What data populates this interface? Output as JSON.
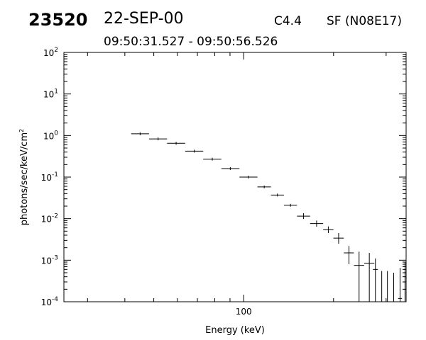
{
  "header": {
    "flare_number": "23520",
    "date": "22-SEP-00",
    "goes_class": "C4.4",
    "location": "SF (N08E17)",
    "time_range": "09:50:31.527 - 09:50:56.526"
  },
  "chart_data": {
    "type": "scatter",
    "title": "",
    "xlabel": "Energy (keV)",
    "ylabel": "photons/sec/keV/cm",
    "ylabel_superscript": "2",
    "xscale": "log",
    "yscale": "log",
    "xlim": [
      25,
      350
    ],
    "ylim": [
      0.0001,
      100
    ],
    "grid": false,
    "x_ticks": [
      {
        "value": 100,
        "label": "100"
      }
    ],
    "y_ticks": [
      {
        "value": 0.0001,
        "base": "10",
        "exp": "-4"
      },
      {
        "value": 0.001,
        "base": "10",
        "exp": "-3"
      },
      {
        "value": 0.01,
        "base": "10",
        "exp": "-2"
      },
      {
        "value": 0.1,
        "base": "10",
        "exp": "-1"
      },
      {
        "value": 1,
        "base": "10",
        "exp": "0"
      },
      {
        "value": 10,
        "base": "10",
        "exp": "1"
      },
      {
        "value": 100,
        "base": "10",
        "exp": "2"
      }
    ],
    "points": [
      {
        "x": 45.0,
        "xlo": 42.0,
        "xhi": 48.2,
        "y": 1.1
      },
      {
        "x": 51.7,
        "xlo": 48.2,
        "xhi": 55.4,
        "y": 0.83
      },
      {
        "x": 59.4,
        "xlo": 55.4,
        "xhi": 63.7,
        "y": 0.65
      },
      {
        "x": 68.3,
        "xlo": 63.7,
        "xhi": 73.2,
        "y": 0.42
      },
      {
        "x": 78.5,
        "xlo": 73.2,
        "xhi": 84.2,
        "y": 0.27
      },
      {
        "x": 90.2,
        "xlo": 84.2,
        "xhi": 96.8,
        "y": 0.16
      },
      {
        "x": 103.7,
        "xlo": 96.8,
        "xhi": 111.2,
        "y": 0.1
      },
      {
        "x": 117.2,
        "xlo": 111.2,
        "xhi": 123.4,
        "y": 0.058
      },
      {
        "x": 129.7,
        "xlo": 123.4,
        "xhi": 136.4,
        "y": 0.037
      },
      {
        "x": 143.5,
        "xlo": 136.4,
        "xhi": 150.9,
        "y": 0.021
      },
      {
        "x": 158.7,
        "xlo": 150.9,
        "xhi": 166.9,
        "y": 0.0115,
        "ylo": 0.0098,
        "yhi": 0.0135
      },
      {
        "x": 175.5,
        "xlo": 166.9,
        "xhi": 184.6,
        "y": 0.0076,
        "ylo": 0.0064,
        "yhi": 0.009
      },
      {
        "x": 192.1,
        "xlo": 184.6,
        "xhi": 199.8,
        "y": 0.0054,
        "ylo": 0.0045,
        "yhi": 0.0065
      },
      {
        "x": 208.0,
        "xlo": 199.8,
        "xhi": 216.5,
        "y": 0.0034,
        "ylo": 0.0025,
        "yhi": 0.0045
      },
      {
        "x": 225.2,
        "xlo": 216.5,
        "xhi": 234.0,
        "y": 0.0015,
        "ylo": 0.0008,
        "yhi": 0.0022
      },
      {
        "x": 243.5,
        "xlo": 234.0,
        "xhi": 253.3,
        "y": 0.00075,
        "ylo": 0.0001,
        "yhi": 0.0016
      },
      {
        "x": 263.5,
        "xlo": 253.3,
        "xhi": 274.0,
        "y": 0.00085,
        "ylo": 0.0001,
        "yhi": 0.0015
      },
      {
        "x": 276.2,
        "xlo": 271.0,
        "xhi": 281.6,
        "y": 0.0006,
        "ylo": 0.0001,
        "yhi": 0.0011
      },
      {
        "x": 290.0,
        "y": 0.00025,
        "ylo": 0.0001,
        "yhi": 0.00055
      },
      {
        "x": 303.0,
        "y": 0.00025,
        "ylo": 0.0001,
        "yhi": 0.00055
      },
      {
        "x": 318.0,
        "y": 0.00022,
        "ylo": 0.0001,
        "yhi": 0.0005
      },
      {
        "x": 334.0,
        "xlo": 329.0,
        "xhi": 339.0,
        "y": 0.00012,
        "ylo": 0.0001,
        "yhi": 0.00065
      },
      {
        "x": 347.0,
        "y": 0.00025,
        "ylo": 0.0001,
        "yhi": 0.0009
      }
    ]
  }
}
